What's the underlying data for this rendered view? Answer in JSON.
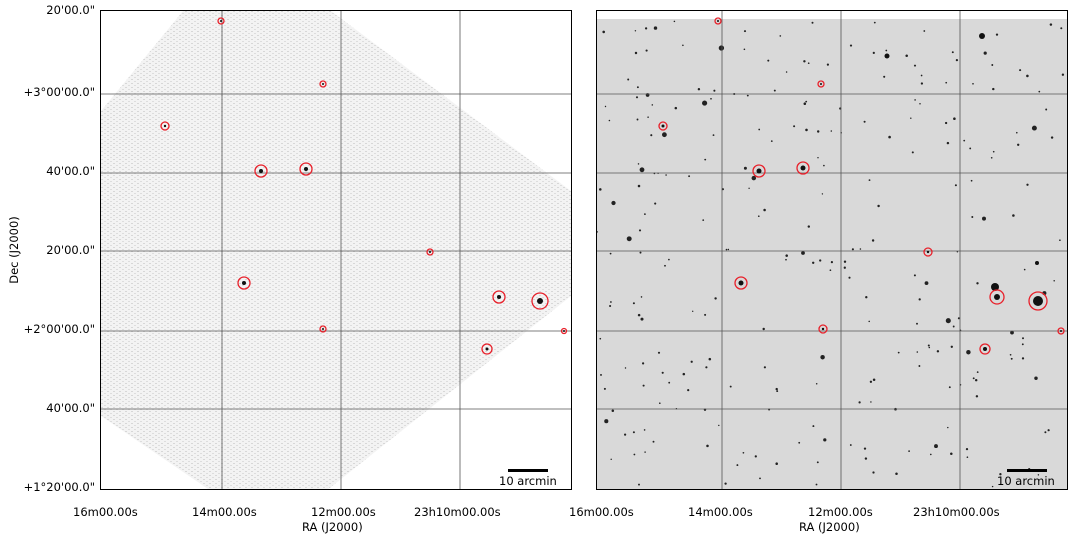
{
  "axes": {
    "xlabel": "RA (J2000)",
    "ylabel": "Dec (J2000)",
    "left_x_ticks": [
      "16m00.00s",
      "14m00.00s",
      "12m00.00s",
      "23h10m00.00s"
    ],
    "right_x_ticks": [
      "16m00.00s",
      "14m00.00s",
      "12m00.00s",
      "23h10m00.00s"
    ],
    "y_ticks": [
      "20'00.0\"",
      "+3°00'00.0\"",
      "40'00.0\"",
      "20'00.0\"",
      "+2°00'00.0\"",
      "40'00.0\"",
      "+1°20'00.0\""
    ]
  },
  "scale_bar": {
    "label": "10 arcmin"
  },
  "colors": {
    "circle": "#e8202a",
    "grid": "#555555",
    "star": "#111111"
  }
}
